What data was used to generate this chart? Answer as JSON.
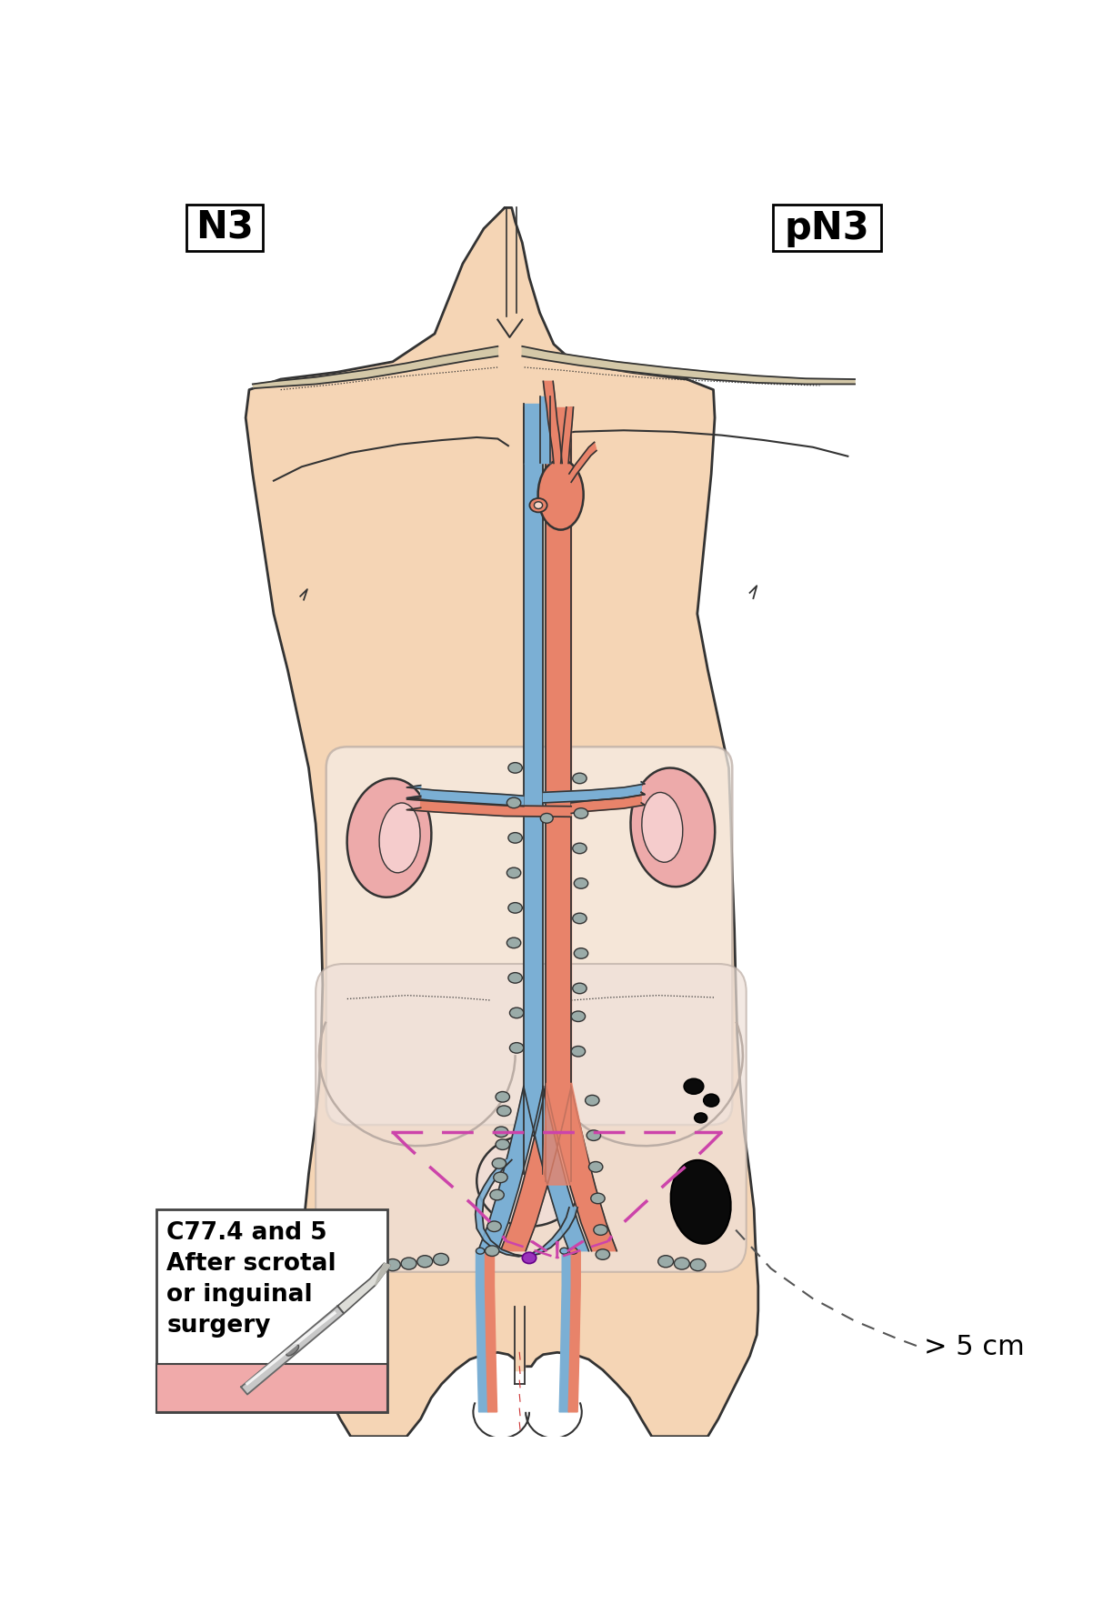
{
  "title_left": "N3",
  "title_right": "pN3",
  "label_surgery": "C77.4 and 5\nAfter scrotal\nor inguinal\nsurgery",
  "label_dimension": "> 5 cm",
  "skin_color": "#F5D5B5",
  "skin_outline": "#333333",
  "vein_blue": "#7BAFD4",
  "artery_red": "#E8836A",
  "kidney_color": "#EDAAAA",
  "node_gray": "#9AABA8",
  "lymph_dashed_color": "#CC44AA",
  "bg_color": "#FFFFFF",
  "abdom_fill": "#F5EDE5",
  "abdom_edge": "#BBADA5",
  "pelvis_fill": "#EEE0D8",
  "bone_color": "#D4C8A8",
  "bladder_fill": "#F0DDD5"
}
